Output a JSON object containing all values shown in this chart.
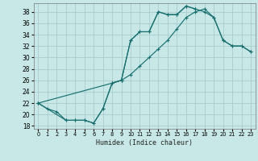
{
  "xlabel": "Humidex (Indice chaleur)",
  "bg_color": "#c8e8e8",
  "grid_color": "#a8cccc",
  "line_color": "#1a7070",
  "xlim": [
    -0.5,
    23.5
  ],
  "ylim": [
    17.5,
    39.5
  ],
  "xticks": [
    0,
    1,
    2,
    3,
    4,
    5,
    6,
    7,
    8,
    9,
    10,
    11,
    12,
    13,
    14,
    15,
    16,
    17,
    18,
    19,
    20,
    21,
    22,
    23
  ],
  "yticks": [
    18,
    20,
    22,
    24,
    26,
    28,
    30,
    32,
    34,
    36,
    38
  ],
  "line1_x": [
    0,
    1,
    2,
    3,
    4,
    5,
    6,
    7,
    8,
    9,
    10,
    11,
    12,
    13,
    14,
    15,
    16,
    17
  ],
  "line1_y": [
    22,
    21,
    20.5,
    19,
    19,
    19,
    18.5,
    21,
    25.5,
    26,
    33,
    34.5,
    34.5,
    38,
    37.5,
    37.5,
    39,
    38.5
  ],
  "line2_x": [
    0,
    8,
    9,
    10,
    11,
    12,
    13,
    14,
    15,
    16,
    17,
    18,
    19,
    20,
    21,
    22,
    23
  ],
  "line2_y": [
    22,
    25.5,
    26,
    27,
    28.5,
    30,
    31.5,
    33,
    35,
    37,
    38,
    38.5,
    37,
    33,
    32,
    32,
    31
  ],
  "line3_x": [
    0,
    3,
    4,
    5,
    6,
    7,
    8,
    9,
    10,
    11,
    12,
    13,
    14,
    15,
    16,
    17,
    18,
    19,
    20,
    21,
    22,
    23
  ],
  "line3_y": [
    22,
    19,
    19,
    19,
    18.5,
    21,
    25.5,
    26,
    33,
    34.5,
    34.5,
    38,
    37.5,
    37.5,
    39,
    38.5,
    38,
    37,
    33,
    32,
    32,
    31
  ]
}
